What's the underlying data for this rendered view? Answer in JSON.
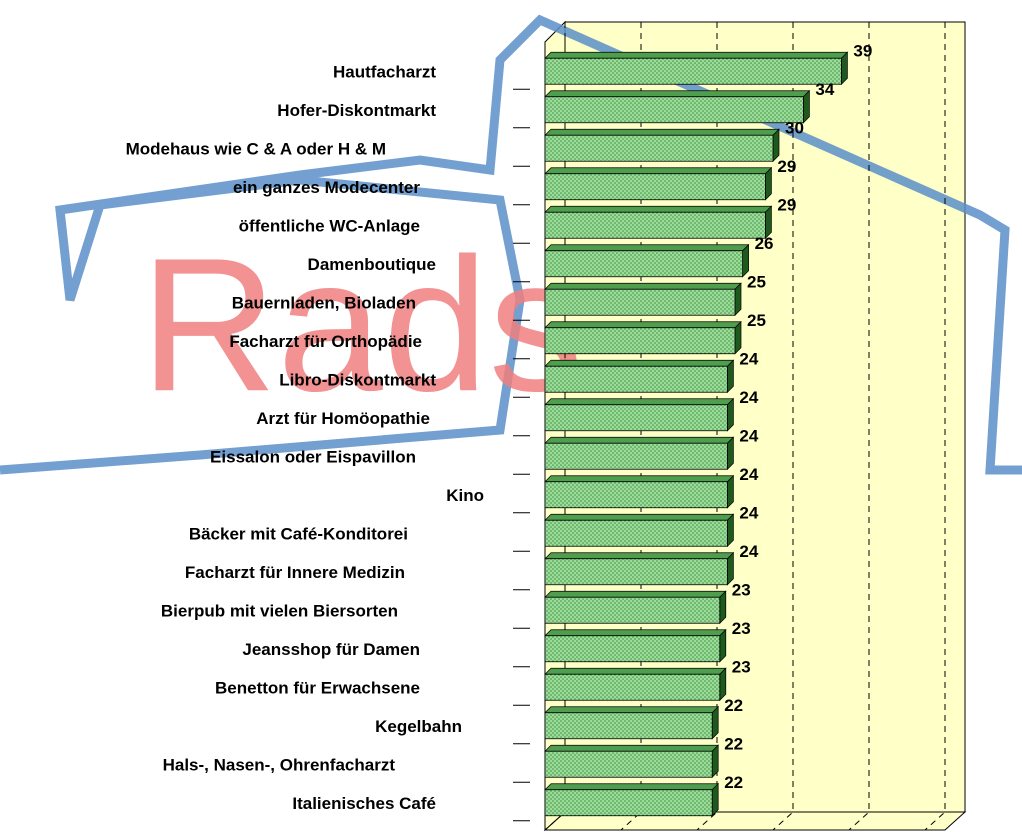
{
  "chart_data": {
    "type": "bar",
    "orientation": "horizontal",
    "watermark": "Rads",
    "categories": [
      "Hautfacharzt",
      "Hofer-Diskontmarkt",
      "Modehaus wie C & A oder H & M",
      "ein ganzes Modecenter",
      "öffentliche WC-Anlage",
      "Damenboutique",
      "Bauernladen, Bioladen",
      "Facharzt für Orthopädie",
      "Libro-Diskontmarkt",
      "Arzt für Homöopathie",
      "Eissalon oder Eispavillon",
      "Kino",
      "Bäcker mit Café-Konditorei",
      "Facharzt für Innere Medizin",
      "Bierpub mit vielen Biersorten",
      "Jeansshop für Damen",
      "Benetton für Erwachsene",
      "Kegelbahn",
      "Hals-, Nasen-, Ohrenfacharzt",
      "Italienisches Café"
    ],
    "values": [
      39,
      34,
      30,
      29,
      29,
      26,
      25,
      25,
      24,
      24,
      24,
      24,
      24,
      24,
      23,
      23,
      23,
      22,
      22,
      22
    ],
    "color": "#8fd18f",
    "xlim": [
      0,
      50
    ],
    "xticks": [
      0,
      10,
      20,
      30,
      40,
      50
    ],
    "grid": true
  }
}
